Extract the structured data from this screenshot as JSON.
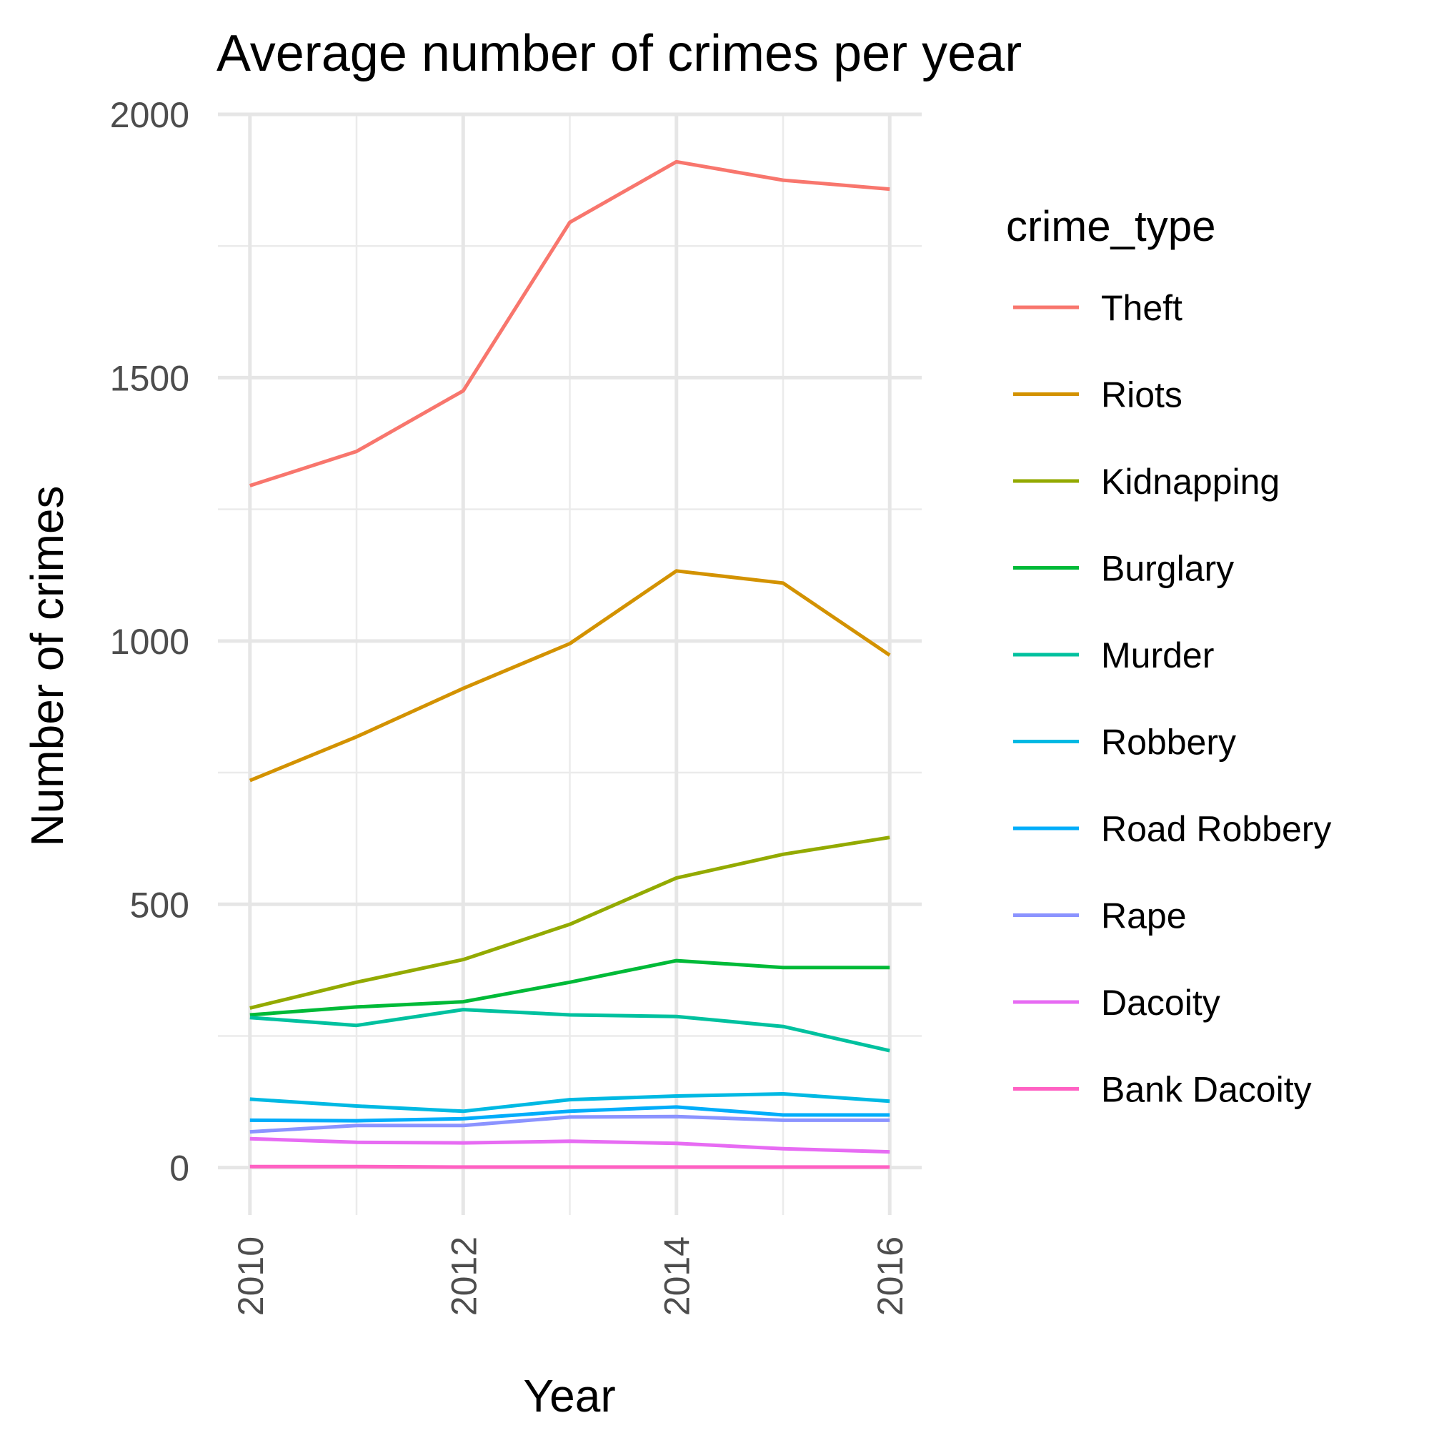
{
  "chart_data": {
    "type": "line",
    "title": "Average number of crimes per year",
    "xlabel": "Year",
    "ylabel": "Number of crimes",
    "x": [
      2010,
      2011,
      2012,
      2013,
      2014,
      2015,
      2016
    ],
    "xlim": [
      2009.7,
      2016.3
    ],
    "ylim": [
      -90,
      2000
    ],
    "x_ticks": [
      2010,
      2012,
      2014,
      2016
    ],
    "x_tick_labels": [
      "2010",
      "2012",
      "2014",
      "2016"
    ],
    "y_ticks": [
      0,
      500,
      1000,
      1500,
      2000
    ],
    "y_tick_labels": [
      "0",
      "500",
      "1000",
      "1500",
      "2000"
    ],
    "grid": true,
    "legend": {
      "title": "crime_type",
      "placement": "right"
    },
    "series": [
      {
        "name": "Theft",
        "color": "#F8766D",
        "values": [
          1295,
          1360,
          1475,
          1795,
          1910,
          1875,
          1858
        ]
      },
      {
        "name": "Riots",
        "color": "#D39200",
        "values": [
          735,
          818,
          910,
          995,
          1133,
          1110,
          973
        ]
      },
      {
        "name": "Kidnapping",
        "color": "#93AA00",
        "values": [
          303,
          352,
          395,
          462,
          550,
          595,
          627
        ]
      },
      {
        "name": "Burglary",
        "color": "#00BA38",
        "values": [
          290,
          305,
          315,
          352,
          393,
          380,
          380
        ]
      },
      {
        "name": "Murder",
        "color": "#00C19F",
        "values": [
          285,
          270,
          300,
          290,
          287,
          268,
          222
        ]
      },
      {
        "name": "Robbery",
        "color": "#00B9E3",
        "values": [
          130,
          117,
          107,
          129,
          136,
          140,
          126
        ]
      },
      {
        "name": "Road Robbery",
        "color": "#00ADFA",
        "values": [
          90,
          89,
          93,
          107,
          115,
          100,
          100
        ]
      },
      {
        "name": "Rape",
        "color": "#8B93FF",
        "values": [
          68,
          80,
          80,
          96,
          97,
          90,
          90
        ]
      },
      {
        "name": "Dacoity",
        "color": "#E76BF3",
        "values": [
          55,
          48,
          47,
          50,
          46,
          36,
          30
        ]
      },
      {
        "name": "Bank Dacoity",
        "color": "#FF61C3",
        "values": [
          2,
          2,
          1,
          1,
          1,
          1,
          1
        ]
      }
    ]
  }
}
